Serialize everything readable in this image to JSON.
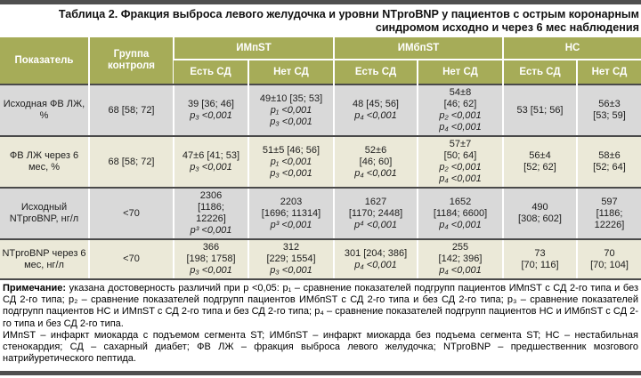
{
  "title": "Таблица 2. Фракция выброса левого желудочка и уровни NTproBNP у пациентов с острым коронарным синдромом исходно и через 6 мес наблюдения",
  "colors": {
    "header_green": "#a6ac58",
    "row_gray": "#d9d9d9",
    "row_beige": "#ebe9d8",
    "rule_dark": "#4a4a4a",
    "bar_gray": "#4f4f4f"
  },
  "table": {
    "header": {
      "col_indicator": "Показатель",
      "col_control": "Группа контроля",
      "groups": [
        {
          "label": "ИМпST",
          "subs": [
            "Есть СД",
            "Нет СД"
          ]
        },
        {
          "label": "ИМбпST",
          "subs": [
            "Есть СД",
            "Нет СД"
          ]
        },
        {
          "label": "НС",
          "subs": [
            "Есть СД",
            "Нет СД"
          ]
        }
      ]
    },
    "rows": [
      {
        "label": "Исходная ФВ ЛЖ, %",
        "control": "68 [58; 72]",
        "cells": [
          [
            {
              "text": "39 [36; 46]"
            },
            {
              "text": "p₃ <0,001",
              "italic": true
            }
          ],
          [
            {
              "text": "49±10 [35; 53]"
            },
            {
              "text": "p₁ <0,001",
              "italic": true
            },
            {
              "text": "p₃ <0,001",
              "italic": true
            }
          ],
          [
            {
              "text": "48 [45; 56]"
            },
            {
              "text": "p₄ <0,001",
              "italic": true
            }
          ],
          [
            {
              "text": "54±8"
            },
            {
              "text": "[46; 62]"
            },
            {
              "text": "p₂ <0,001",
              "italic": true
            },
            {
              "text": "p₄ <0,001",
              "italic": true
            }
          ],
          [
            {
              "text": "53 [51; 56]"
            }
          ],
          [
            {
              "text": "56±3"
            },
            {
              "text": "[53; 59]"
            }
          ]
        ]
      },
      {
        "label": "ФВ ЛЖ через 6 мес, %",
        "control": "68 [58; 72]",
        "cells": [
          [
            {
              "text": "47±6 [41; 53]"
            },
            {
              "text": "p₃ <0,001",
              "italic": true
            }
          ],
          [
            {
              "text": "51±5 [46; 56]"
            },
            {
              "text": "p₁ <0,001",
              "italic": true
            },
            {
              "text": "p₃ <0,001",
              "italic": true
            }
          ],
          [
            {
              "text": "52±6"
            },
            {
              "text": "[46; 60]"
            },
            {
              "text": "p₄ <0,001",
              "italic": true
            }
          ],
          [
            {
              "text": "57±7"
            },
            {
              "text": "[50; 64]"
            },
            {
              "text": "p₂ <0,001",
              "italic": true
            },
            {
              "text": "p₄ <0,001",
              "italic": true
            }
          ],
          [
            {
              "text": "56±4"
            },
            {
              "text": "[52; 62]"
            }
          ],
          [
            {
              "text": "58±6"
            },
            {
              "text": "[52; 64]"
            }
          ]
        ]
      },
      {
        "label": "Исходный NTproBNP, нг/л",
        "control": "<70",
        "cells": [
          [
            {
              "text": "2306"
            },
            {
              "text": "[1186;"
            },
            {
              "text": "12226]"
            },
            {
              "text": "p³ <0,001",
              "italic": true
            }
          ],
          [
            {
              "text": "2203"
            },
            {
              "text": "[1696; 11314]"
            },
            {
              "text": "p³ <0,001",
              "italic": true
            }
          ],
          [
            {
              "text": "1627"
            },
            {
              "text": "[1170; 2448]"
            },
            {
              "text": "p⁴ <0,001",
              "italic": true
            }
          ],
          [
            {
              "text": "1652"
            },
            {
              "text": "[1184; 6600]"
            },
            {
              "text": "p₄ <0,001",
              "italic": true
            }
          ],
          [
            {
              "text": "490"
            },
            {
              "text": "[308; 602]"
            }
          ],
          [
            {
              "text": "597"
            },
            {
              "text": "[1186;"
            },
            {
              "text": "12226]"
            }
          ]
        ]
      },
      {
        "label": "NTproBNP через 6 мес, нг/л",
        "control": "<70",
        "cells": [
          [
            {
              "text": "366"
            },
            {
              "text": "[198; 1758]"
            },
            {
              "text": "p₃ <0,001",
              "italic": true
            }
          ],
          [
            {
              "text": "312"
            },
            {
              "text": "[229; 1554]"
            },
            {
              "text": "p₃ <0,001",
              "italic": true
            }
          ],
          [
            {
              "text": "301 [204; 386]"
            },
            {
              "text": "p₄ <0,001",
              "italic": true
            }
          ],
          [
            {
              "text": "255"
            },
            {
              "text": "[142; 396]"
            },
            {
              "text": "p₄ <0,001",
              "italic": true
            }
          ],
          [
            {
              "text": "73"
            },
            {
              "text": "[70; 116]"
            }
          ],
          [
            {
              "text": "70"
            },
            {
              "text": "[70; 104]"
            }
          ]
        ]
      }
    ]
  },
  "notes": {
    "note_label": "Примечание:",
    "note_text": " указана достоверность различий при р <0,05: p₁ – сравнение показателей подгрупп пациентов ИМпST с СД 2-го типа и без СД 2-го типа; p₂ – сравнение показателей подгрупп пациентов ИМбпST с СД 2-го типа и без СД 2-го типа; p₃ – сравнение показателей подгрупп пациентов НС и ИМпST с СД 2-го типа и без СД 2-го типа; p₄ – сравнение показателей подгрупп пациентов НС и ИМбпST с СД 2-го типа и без СД 2-го типа.",
    "abbreviations": "ИМпST – инфаркт миокарда с подъемом сегмента ST; ИМбпST – инфаркт миокарда без подъема сегмента ST; НС – нестабильная стенокардия; СД – сахарный диабет; ФВ ЛЖ – фракция выброса левого желудочка; NTproBNP – предшественник мозгового натрийуретического пептида."
  }
}
